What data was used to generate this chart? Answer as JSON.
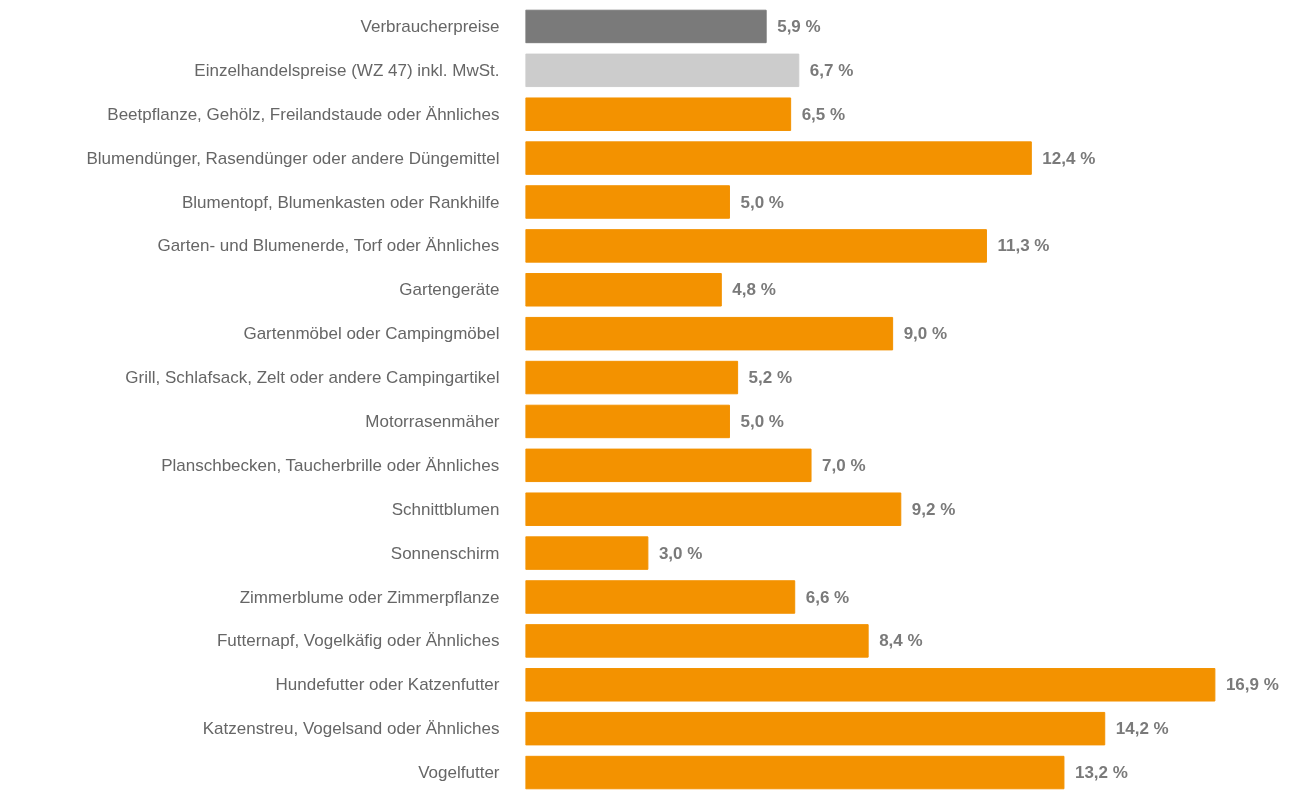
{
  "chart_data": {
    "type": "bar",
    "orientation": "horizontal",
    "categories": [
      "Verbraucherpreise",
      "Einzelhandelspreise (WZ 47) inkl. MwSt.",
      "Beetpflanze, Gehölz, Freilandstaude oder Ähnliches",
      "Blumendünger, Rasendünger oder andere Düngemittel",
      "Blumentopf, Blumenkasten oder Rankhilfe",
      "Garten- und Blumenerde, Torf oder Ähnliches",
      "Gartengeräte",
      "Gartenmöbel oder Campingmöbel",
      "Grill, Schlafsack, Zelt oder andere Campingartikel",
      "Motorrasenmäher",
      "Planschbecken, Taucherbrille oder Ähnliches",
      "Schnittblumen",
      "Sonnenschirm",
      "Zimmerblume oder Zimmerpflanze",
      "Futternapf, Vogelkäfig oder Ähnliches",
      "Hundefutter oder Katzenfutter",
      "Katzenstreu, Vogelsand oder Ähnliches",
      "Vogelfutter"
    ],
    "values": [
      5.9,
      6.7,
      6.5,
      12.4,
      5.0,
      11.3,
      4.8,
      9.0,
      5.2,
      5.0,
      7.0,
      9.2,
      3.0,
      6.6,
      8.4,
      16.9,
      14.2,
      13.2
    ],
    "value_labels": [
      "5,9 %",
      "6,7 %",
      "6,5 %",
      "12,4 %",
      "5,0 %",
      "11,3 %",
      "4,8 %",
      "9,0 %",
      "5,2 %",
      "5,0 %",
      "7,0 %",
      "9,2 %",
      "3,0 %",
      "6,6 %",
      "8,4 %",
      "16,9 %",
      "14,2 %",
      "13,2 %"
    ],
    "colors": [
      "#7a7a7a",
      "#cccccc",
      "#f39200",
      "#f39200",
      "#f39200",
      "#f39200",
      "#f39200",
      "#f39200",
      "#f39200",
      "#f39200",
      "#f39200",
      "#f39200",
      "#f39200",
      "#f39200",
      "#f39200",
      "#f39200",
      "#f39200",
      "#f39200"
    ],
    "grid": false
  }
}
